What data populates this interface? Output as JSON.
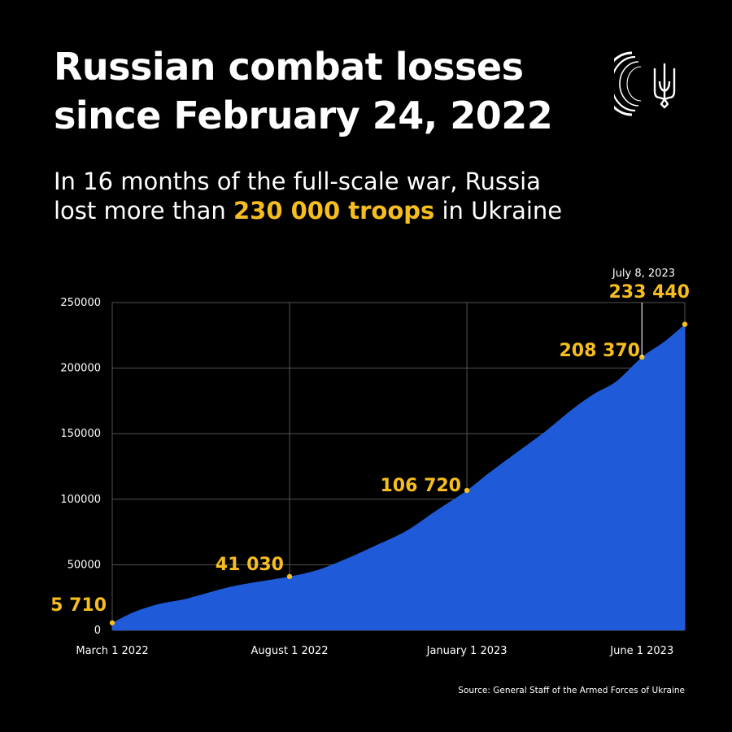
{
  "header": {
    "title_line1": "Russian combat losses",
    "title_line2": "since February 24, 2022",
    "subtitle_pre": "In 16 months of the full-scale war, Russia",
    "subtitle_pre2": "lost more than ",
    "subtitle_highlight": "230 000 troops",
    "subtitle_post": " in Ukraine"
  },
  "colors": {
    "background": "#000000",
    "area_fill": "#1f5bd9",
    "accent": "#f5bd1f",
    "gridline": "#555555",
    "text": "#ffffff"
  },
  "logo": {
    "icons": [
      "arc-emblem-icon",
      "trident-icon"
    ]
  },
  "source": "Source: General Staff of the Armed Forces of Ukraine",
  "chart_data": {
    "type": "area",
    "title": "",
    "xlabel": "",
    "ylabel": "",
    "ylim": [
      0,
      250000
    ],
    "yticks": [
      0,
      50000,
      100000,
      150000,
      200000,
      250000
    ],
    "ytick_labels": [
      "0",
      "50000",
      "100000",
      "150000",
      "200000",
      "250000"
    ],
    "xlim": [
      "2022-03-01",
      "2023-07-08"
    ],
    "xticks": [
      {
        "date": "2022-03-01",
        "label": "March 1 2022"
      },
      {
        "date": "2022-08-01",
        "label": "August 1 2022"
      },
      {
        "date": "2023-01-01",
        "label": "January 1 2023"
      },
      {
        "date": "2023-06-01",
        "label": "June 1 2023"
      }
    ],
    "grid": true,
    "series": [
      {
        "x": [
          "2022-03-01",
          "2022-03-20",
          "2022-04-10",
          "2022-05-01",
          "2022-05-20",
          "2022-06-10",
          "2022-07-01",
          "2022-08-01",
          "2022-08-25",
          "2022-09-20",
          "2022-10-15",
          "2022-11-10",
          "2022-12-05",
          "2023-01-01",
          "2023-01-20",
          "2023-02-15",
          "2023-03-10",
          "2023-04-01",
          "2023-04-20",
          "2023-05-10",
          "2023-06-01",
          "2023-06-20",
          "2023-07-08"
        ],
        "values": [
          5710,
          14000,
          20000,
          23500,
          28000,
          33000,
          36500,
          41030,
          46000,
          55000,
          65000,
          76000,
          91000,
          106720,
          120000,
          137000,
          152000,
          168000,
          180000,
          190000,
          208370,
          220000,
          233440
        ]
      }
    ],
    "annotations": [
      {
        "date": "2022-03-01",
        "value": 5710,
        "label": "5 710"
      },
      {
        "date": "2022-08-01",
        "value": 41030,
        "label": "41 030"
      },
      {
        "date": "2023-01-01",
        "value": 106720,
        "label": "106 720"
      },
      {
        "date": "2023-06-01",
        "value": 208370,
        "label": "208 370"
      },
      {
        "date": "2023-07-08",
        "value": 233440,
        "label": "233 440",
        "date_label": "July 8, 2023"
      }
    ]
  }
}
